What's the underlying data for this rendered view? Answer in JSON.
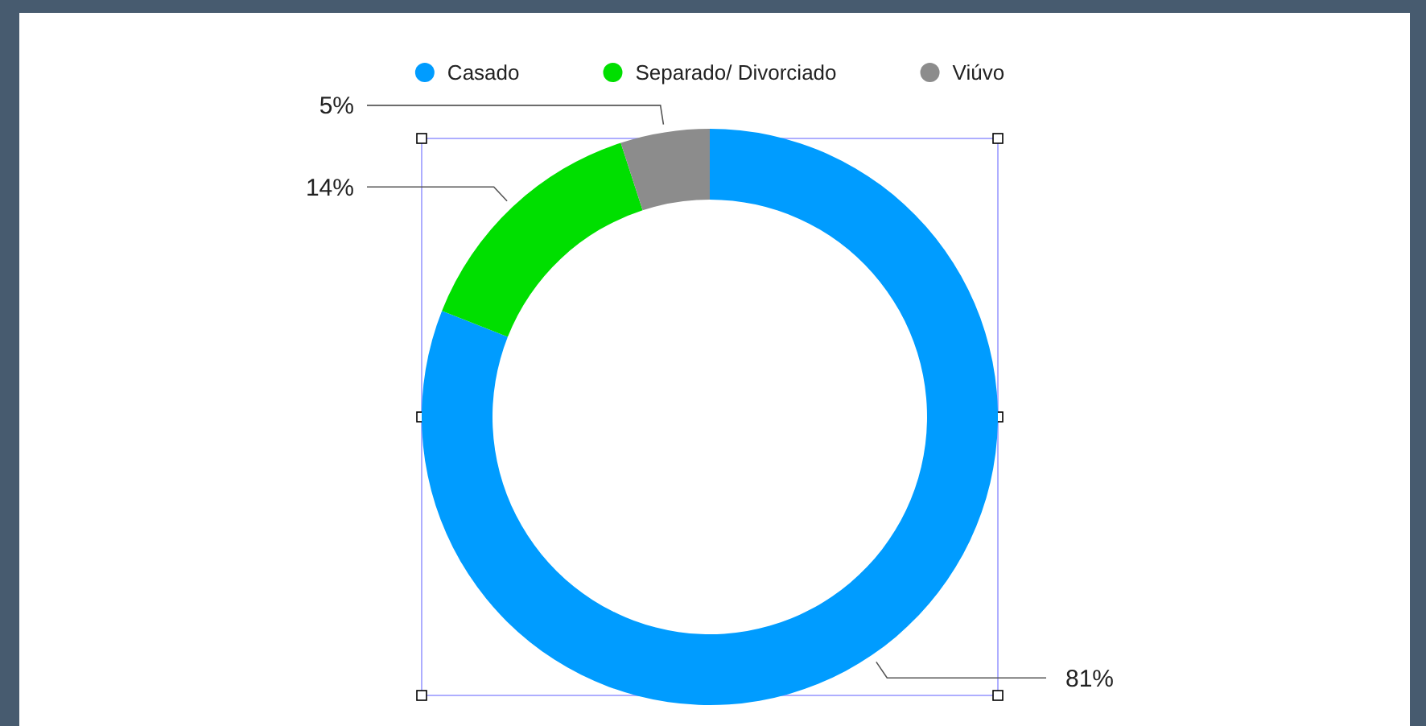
{
  "chart_data": {
    "type": "donut",
    "categories": [
      "Casado",
      "Separado/ Divorciado",
      "Viúvo"
    ],
    "values": [
      81,
      14,
      5
    ],
    "colors": [
      "#009cff",
      "#00df00",
      "#8c8c8c"
    ],
    "value_labels": [
      "81%",
      "14%",
      "5%"
    ],
    "legend": "top"
  }
}
